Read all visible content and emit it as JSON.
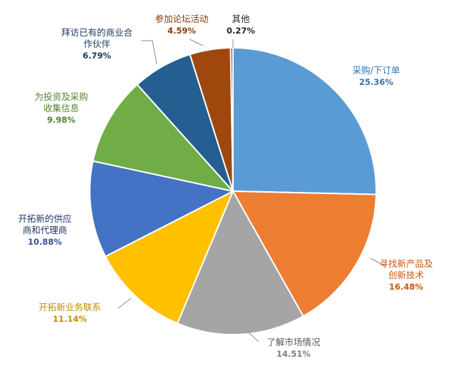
{
  "chart_data": {
    "type": "pie",
    "title": "",
    "slices": [
      {
        "name": "采购/下订单",
        "label_lines": [
          "采购/下订单"
        ],
        "value": 25.36,
        "value_label": "25.36%",
        "color": "#5B9BD5",
        "label_color": "#2E75B6",
        "pct_color": "#2E75B6"
      },
      {
        "name": "寻找新产品及创新技术",
        "label_lines": [
          "寻找新产品及",
          "创新技术"
        ],
        "value": 16.48,
        "value_label": "16.48%",
        "color": "#ED7D31",
        "label_color": "#C55A11",
        "pct_color": "#C55A11"
      },
      {
        "name": "了解市场情况",
        "label_lines": [
          "了解市场情况"
        ],
        "value": 14.51,
        "value_label": "14.51%",
        "color": "#A5A5A5",
        "label_color": "#595959",
        "pct_color": "#7F7F7F"
      },
      {
        "name": "开拓新业务联系",
        "label_lines": [
          "开拓新业务联系"
        ],
        "value": 11.14,
        "value_label": "11.14%",
        "color": "#FFC000",
        "label_color": "#BF9000",
        "pct_color": "#BF9000"
      },
      {
        "name": "开拓新的供应商和代理商",
        "label_lines": [
          "开拓新的供应",
          "商和代理商"
        ],
        "value": 10.88,
        "value_label": "10.88%",
        "color": "#4472C4",
        "label_color": "#1F3864",
        "pct_color": "#2F5597"
      },
      {
        "name": "为投资及采购收集信息",
        "label_lines": [
          "为投资及采购",
          "收集信息"
        ],
        "value": 9.98,
        "value_label": "9.98%",
        "color": "#70AD47",
        "label_color": "#548235",
        "pct_color": "#548235"
      },
      {
        "name": "拜访已有的商业合作伙伴",
        "label_lines": [
          "拜访已有的商业合",
          "作伙伴"
        ],
        "value": 6.79,
        "value_label": "6.79%",
        "color": "#255E91",
        "label_color": "#1F3864",
        "pct_color": "#1F3864"
      },
      {
        "name": "参加论坛活动",
        "label_lines": [
          "参加论坛活动"
        ],
        "value": 4.59,
        "value_label": "4.59%",
        "color": "#9E480E",
        "label_color": "#843C0C",
        "pct_color": "#843C0C"
      },
      {
        "name": "其他",
        "label_lines": [
          "其他"
        ],
        "value": 0.27,
        "value_label": "0.27%",
        "color": "#636363",
        "label_color": "#262626",
        "pct_color": "#262626"
      }
    ]
  }
}
